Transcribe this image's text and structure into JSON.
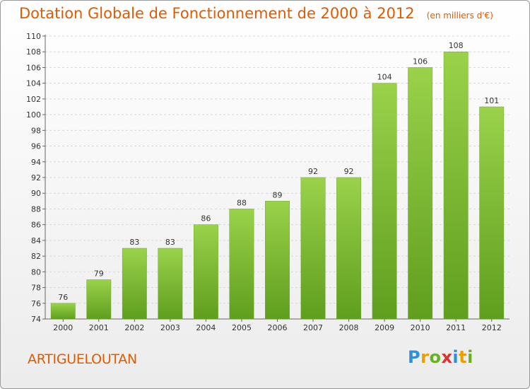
{
  "header": {
    "title": "Dotation Globale de Fonctionnement de 2000 à 2012",
    "subtitle": "(en milliers d'€)"
  },
  "footer": {
    "place": "ARTIGUELOUTAN",
    "logo_letters": [
      {
        "ch": "P",
        "color": "#2f8fd8"
      },
      {
        "ch": "r",
        "color": "#e8a000"
      },
      {
        "ch": "o",
        "color": "#6ab023"
      },
      {
        "ch": "x",
        "color": "#e03030"
      },
      {
        "ch": "i",
        "color": "#2f8fd8"
      },
      {
        "ch": "t",
        "color": "#e8a000"
      },
      {
        "ch": "i",
        "color": "#6ab023"
      }
    ]
  },
  "chart_data": {
    "type": "bar",
    "title": "Dotation Globale de Fonctionnement de 2000 à 2012",
    "subtitle": "(en milliers d'€)",
    "categories": [
      "2000",
      "2001",
      "2002",
      "2003",
      "2004",
      "2005",
      "2006",
      "2007",
      "2008",
      "2009",
      "2010",
      "2011",
      "2012"
    ],
    "values": [
      76,
      79,
      83,
      83,
      86,
      88,
      89,
      92,
      92,
      104,
      106,
      108,
      101
    ],
    "ylim": [
      74,
      110
    ],
    "yticks": [
      74,
      76,
      78,
      80,
      82,
      84,
      86,
      88,
      90,
      92,
      94,
      96,
      98,
      100,
      102,
      104,
      106,
      108,
      110
    ],
    "grid": true,
    "bar_color": "#7fc230",
    "bar_color_dark": "#5f9e1e"
  }
}
